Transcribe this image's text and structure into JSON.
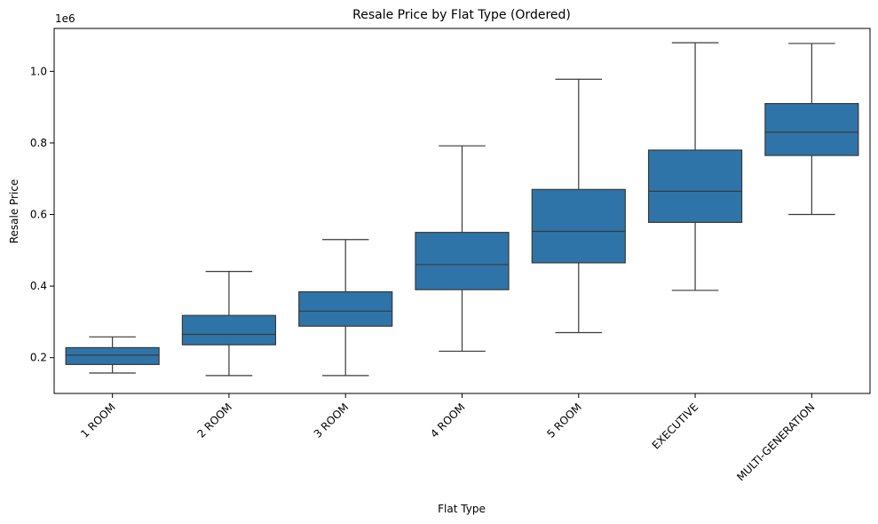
{
  "chart_data": {
    "type": "box",
    "title": "Resale Price by Flat Type (Ordered)",
    "xlabel": "Flat Type",
    "ylabel": "Resale Price",
    "y_offset_label": "1e6",
    "ylim": [
      0.1,
      1.12
    ],
    "yticks": [
      0.2,
      0.4,
      0.6,
      0.8,
      1.0
    ],
    "ytick_labels": [
      "0.2",
      "0.4",
      "0.6",
      "0.8",
      "1.0"
    ],
    "box_color": "#2f74a8",
    "line_color": "#3a3a3a",
    "categories": [
      "1 ROOM",
      "2 ROOM",
      "3 ROOM",
      "4 ROOM",
      "5 ROOM",
      "EXECUTIVE",
      "MULTI-GENERATION"
    ],
    "boxes": [
      {
        "whisker_low": 0.157,
        "q1": 0.181,
        "median": 0.207,
        "q3": 0.228,
        "whisker_high": 0.258
      },
      {
        "whisker_low": 0.15,
        "q1": 0.236,
        "median": 0.265,
        "q3": 0.318,
        "whisker_high": 0.441
      },
      {
        "whisker_low": 0.15,
        "q1": 0.288,
        "median": 0.33,
        "q3": 0.384,
        "whisker_high": 0.53
      },
      {
        "whisker_low": 0.218,
        "q1": 0.39,
        "median": 0.46,
        "q3": 0.55,
        "whisker_high": 0.792
      },
      {
        "whisker_low": 0.27,
        "q1": 0.465,
        "median": 0.553,
        "q3": 0.67,
        "whisker_high": 0.978
      },
      {
        "whisker_low": 0.388,
        "q1": 0.578,
        "median": 0.665,
        "q3": 0.78,
        "whisker_high": 1.08
      },
      {
        "whisker_low": 0.6,
        "q1": 0.765,
        "median": 0.83,
        "q3": 0.91,
        "whisker_high": 1.078
      }
    ]
  }
}
